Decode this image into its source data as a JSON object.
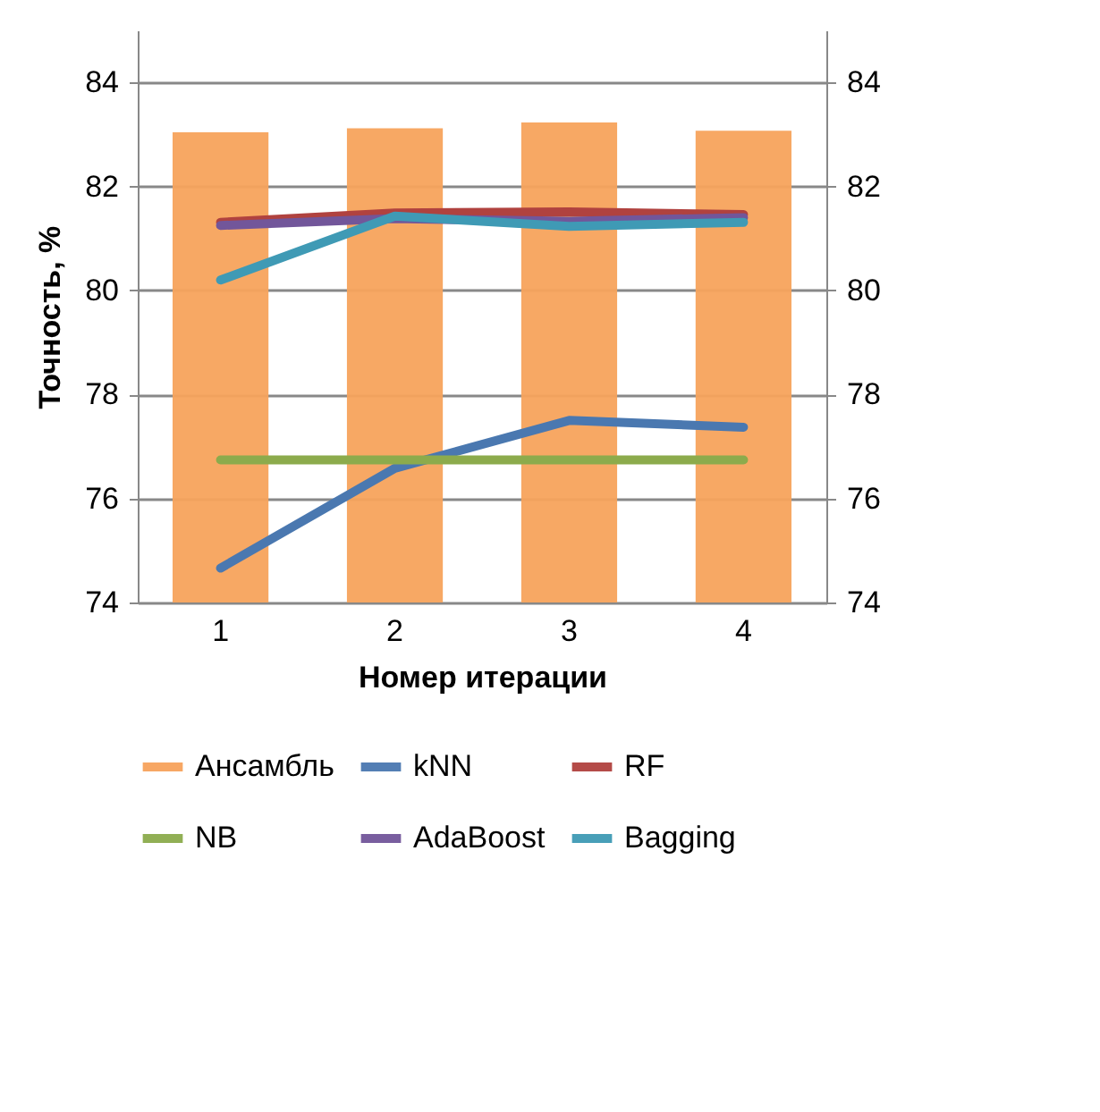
{
  "chart_data": {
    "type": "bar",
    "xlabel": "Номер итерации",
    "ylabel": "Точность, %",
    "categories": [
      "1",
      "2",
      "3",
      "4"
    ],
    "series": [
      {
        "name": "Ансамбль",
        "color": "#f7a35c",
        "values": [
          83.04,
          83.12,
          83.23,
          83.07
        ]
      },
      {
        "name": "kNN",
        "type": "line",
        "color": "#4a78b0",
        "values": [
          74.66,
          76.58,
          77.5,
          77.37
        ]
      },
      {
        "name": "RF",
        "type": "line",
        "color": "#b0423f",
        "values": [
          81.31,
          81.49,
          81.51,
          81.46
        ]
      },
      {
        "name": "NB",
        "type": "line",
        "color": "#8cab4c",
        "values": [
          76.74,
          76.74,
          76.74,
          76.74
        ]
      },
      {
        "name": "AdaBoost",
        "type": "line",
        "color": "#72569a",
        "values": [
          81.25,
          81.38,
          81.33,
          81.4
        ]
      },
      {
        "name": "Bagging",
        "type": "line",
        "color": "#3f9ab5",
        "values": [
          80.2,
          81.43,
          81.23,
          81.31
        ]
      }
    ],
    "ylim": [
      74,
      85
    ],
    "yticks": [
      74,
      76,
      78,
      80,
      82,
      84
    ],
    "y2lim": [
      74,
      85
    ],
    "y2ticks": [
      74,
      76,
      78,
      80,
      82,
      84
    ],
    "grid": "y",
    "legend": "bottom",
    "marker": "none",
    "line_style": "solid"
  }
}
